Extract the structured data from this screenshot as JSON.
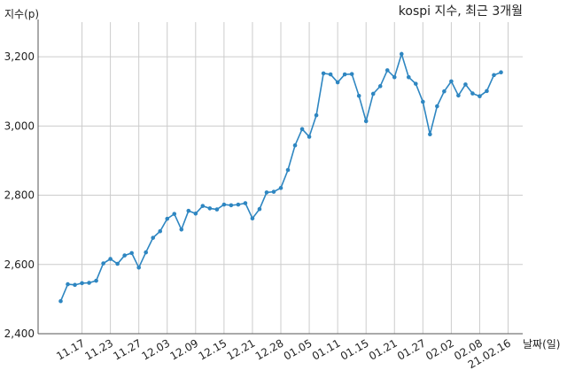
{
  "chart_data": {
    "type": "line",
    "title": "kospi 지수, 최근 3개월",
    "xlabel": "날짜(일)",
    "ylabel": "지수(p)",
    "ylim": [
      2400,
      3300
    ],
    "yticks": [
      2400,
      2600,
      2800,
      3000,
      3200
    ],
    "ytick_labels": [
      "2,400",
      "2,600",
      "2,800",
      "3,000",
      "3,200"
    ],
    "xtick_labels": [
      "11.17",
      "11.23",
      "11.27",
      "12.03",
      "12.09",
      "12.15",
      "12.21",
      "12.28",
      "01.05",
      "01.11",
      "01.15",
      "01.21",
      "01.27",
      "02.02",
      "02.08",
      "21.02.16"
    ],
    "xtick_index": [
      3,
      7,
      11,
      15,
      19,
      23,
      27,
      31,
      35,
      39,
      43,
      47,
      51,
      55,
      59,
      63
    ],
    "grid": true,
    "line_color": "#2e86c1",
    "series": [
      {
        "values": [
          2494,
          2543,
          2541,
          2546,
          2547,
          2553,
          2603,
          2616,
          2602,
          2626,
          2633,
          2591,
          2635,
          2677,
          2696,
          2732,
          2746,
          2701,
          2755,
          2747,
          2769,
          2762,
          2759,
          2773,
          2771,
          2773,
          2777,
          2733,
          2760,
          2808,
          2810,
          2821,
          2873,
          2944,
          2991,
          2969,
          3031,
          3152,
          3149,
          3126,
          3149,
          3150,
          3087,
          3014,
          3093,
          3115,
          3161,
          3141,
          3208,
          3141,
          3122,
          3070,
          2976,
          3057,
          3100,
          3129,
          3088,
          3120,
          3094,
          3086,
          3101,
          3147,
          3155
        ]
      }
    ]
  }
}
